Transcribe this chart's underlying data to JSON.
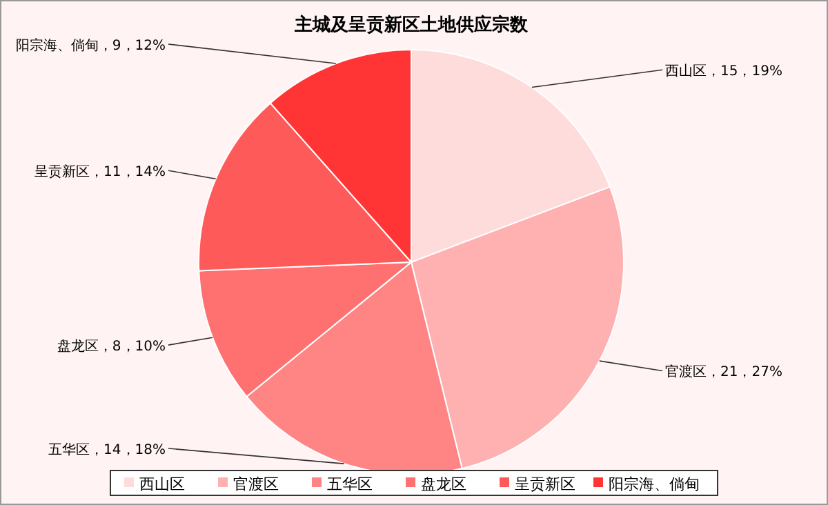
{
  "chart_data": {
    "type": "pie",
    "title": "主城及呈贡新区土地供应宗数",
    "categories": [
      "西山区",
      "官渡区",
      "五华区",
      "盘龙区",
      "呈贡新区",
      "阳宗海、倘甸"
    ],
    "values": [
      15,
      21,
      14,
      8,
      11,
      9
    ],
    "colors": [
      "#ffdcdc",
      "#ffb0b0",
      "#ff8484",
      "#ff7070",
      "#ff5a5a",
      "#ff3535"
    ],
    "value_labels": [
      "西山区，15，19%",
      "官渡区，21，27%",
      "五华区，14，18%",
      "盘龙区，8，10%",
      "呈贡新区，11，14%",
      "阳宗海、倘甸，9，12%"
    ],
    "legend": "bottom"
  }
}
